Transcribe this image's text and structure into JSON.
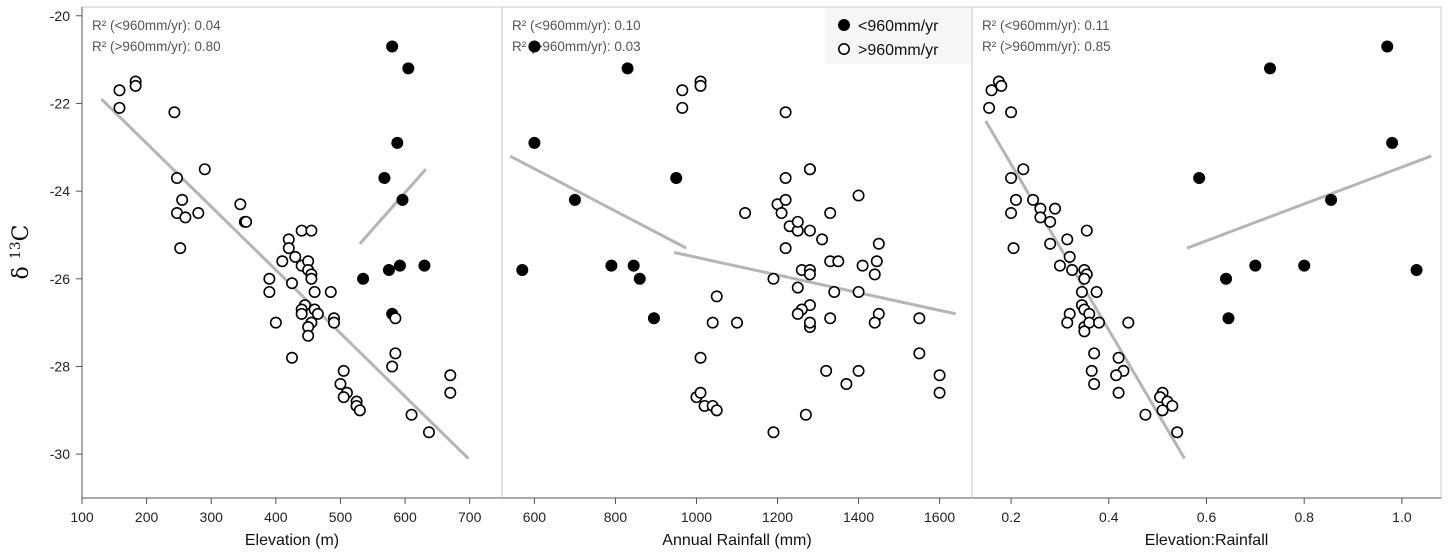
{
  "chart_data": {
    "type": "scatter",
    "ylabel": "δ 13C",
    "ylim": [
      -31,
      -19.8
    ],
    "y_ticks": [
      -20,
      -22,
      -24,
      -26,
      -28,
      -30
    ],
    "legend": {
      "placement": "top-right of middle panel",
      "entries": [
        {
          "label": "<960mm/yr",
          "marker": "filled"
        },
        {
          "label": ">960mm/yr",
          "marker": "open"
        }
      ]
    },
    "colors": {
      "fit_line": "#b5b5b5",
      "marker": "#000000"
    },
    "panels": [
      {
        "xlabel": "Elevation (m)",
        "xlim": [
          100,
          750
        ],
        "x_ticks": [
          "100",
          "200",
          "300",
          "400",
          "500",
          "600",
          "700"
        ],
        "x_tick_values": [
          100,
          200,
          300,
          400,
          500,
          600,
          700
        ],
        "r2_low": "R² (<960mm/yr): 0.04",
        "r2_high": "R² (>960mm/yr): 0.80",
        "series": [
          {
            "name": "<960mm/yr",
            "points": [
              [
                580,
                -20.7
              ],
              [
                605,
                -21.2
              ],
              [
                588,
                -22.9
              ],
              [
                568,
                -23.7
              ],
              [
                596,
                -24.2
              ],
              [
                535,
                -26.0
              ],
              [
                575,
                -25.8
              ],
              [
                592,
                -25.7
              ],
              [
                630,
                -25.7
              ],
              [
                580,
                -26.8
              ]
            ]
          },
          {
            "name": ">960mm/yr",
            "points": [
              [
                158,
                -21.7
              ],
              [
                183,
                -21.5
              ],
              [
                183,
                -21.6
              ],
              [
                158,
                -22.1
              ],
              [
                243,
                -22.2
              ],
              [
                247,
                -23.7
              ],
              [
                290,
                -23.5
              ],
              [
                247,
                -24.5
              ],
              [
                255,
                -24.2
              ],
              [
                260,
                -24.6
              ],
              [
                280,
                -24.5
              ],
              [
                252,
                -25.3
              ],
              [
                345,
                -24.3
              ],
              [
                352,
                -24.7
              ],
              [
                354,
                -24.7
              ],
              [
                440,
                -24.9
              ],
              [
                455,
                -24.9
              ],
              [
                420,
                -25.1
              ],
              [
                420,
                -25.3
              ],
              [
                430,
                -25.5
              ],
              [
                410,
                -25.6
              ],
              [
                440,
                -25.7
              ],
              [
                450,
                -25.6
              ],
              [
                450,
                -25.8
              ],
              [
                455,
                -25.9
              ],
              [
                455,
                -26.0
              ],
              [
                390,
                -26.0
              ],
              [
                425,
                -26.1
              ],
              [
                390,
                -26.3
              ],
              [
                460,
                -26.3
              ],
              [
                485,
                -26.3
              ],
              [
                445,
                -26.6
              ],
              [
                440,
                -26.7
              ],
              [
                440,
                -26.8
              ],
              [
                460,
                -26.7
              ],
              [
                465,
                -26.8
              ],
              [
                455,
                -27.0
              ],
              [
                450,
                -27.1
              ],
              [
                450,
                -27.3
              ],
              [
                400,
                -27.0
              ],
              [
                490,
                -26.9
              ],
              [
                490,
                -27.0
              ],
              [
                425,
                -27.8
              ],
              [
                505,
                -28.1
              ],
              [
                500,
                -28.4
              ],
              [
                510,
                -28.6
              ],
              [
                505,
                -28.7
              ],
              [
                525,
                -28.9
              ],
              [
                525,
                -28.8
              ],
              [
                525,
                -28.9
              ],
              [
                530,
                -29.0
              ],
              [
                585,
                -26.9
              ],
              [
                585,
                -27.7
              ],
              [
                580,
                -28.0
              ],
              [
                670,
                -28.2
              ],
              [
                670,
                -28.6
              ],
              [
                610,
                -29.1
              ],
              [
                637,
                -29.5
              ]
            ]
          }
        ],
        "fit_lines": [
          {
            "series": "<960mm/yr",
            "x": [
              530,
              632
            ],
            "y": [
              -25.2,
              -23.5
            ]
          },
          {
            "series": ">960mm/yr",
            "x": [
              130,
              698
            ],
            "y": [
              -21.9,
              -30.1
            ]
          }
        ]
      },
      {
        "xlabel": "Annual Rainfall (mm)",
        "xlim": [
          520,
          1680
        ],
        "x_ticks": [
          "600",
          "800",
          "1000",
          "1200",
          "1400",
          "1600"
        ],
        "x_tick_values": [
          600,
          800,
          1000,
          1200,
          1400,
          1600
        ],
        "r2_low": "R² (<960mm/yr): 0.10",
        "r2_high": "R² (>960mm/yr): 0.03",
        "series": [
          {
            "name": "<960mm/yr",
            "points": [
              [
                600,
                -20.7
              ],
              [
                830,
                -21.2
              ],
              [
                600,
                -22.9
              ],
              [
                950,
                -23.7
              ],
              [
                700,
                -24.2
              ],
              [
                570,
                -25.8
              ],
              [
                790,
                -25.7
              ],
              [
                845,
                -25.7
              ],
              [
                860,
                -26.0
              ],
              [
                895,
                -26.9
              ]
            ]
          },
          {
            "name": ">960mm/yr",
            "points": [
              [
                1010,
                -21.5
              ],
              [
                1010,
                -21.6
              ],
              [
                965,
                -21.7
              ],
              [
                965,
                -22.1
              ],
              [
                1220,
                -22.2
              ],
              [
                1220,
                -23.7
              ],
              [
                1280,
                -23.5
              ],
              [
                1280,
                -23.5
              ],
              [
                1120,
                -24.5
              ],
              [
                1200,
                -24.3
              ],
              [
                1210,
                -24.5
              ],
              [
                1220,
                -24.2
              ],
              [
                1230,
                -24.8
              ],
              [
                1250,
                -24.9
              ],
              [
                1250,
                -24.7
              ],
              [
                1280,
                -24.9
              ],
              [
                1310,
                -25.1
              ],
              [
                1220,
                -25.3
              ],
              [
                1330,
                -24.5
              ],
              [
                1400,
                -24.1
              ],
              [
                1450,
                -25.2
              ],
              [
                1330,
                -25.6
              ],
              [
                1350,
                -25.6
              ],
              [
                1260,
                -25.8
              ],
              [
                1280,
                -25.8
              ],
              [
                1280,
                -25.9
              ],
              [
                1410,
                -25.7
              ],
              [
                1445,
                -25.6
              ],
              [
                1440,
                -25.9
              ],
              [
                1190,
                -26.0
              ],
              [
                1250,
                -26.2
              ],
              [
                1340,
                -26.3
              ],
              [
                1400,
                -26.3
              ],
              [
                1050,
                -26.4
              ],
              [
                1280,
                -26.6
              ],
              [
                1260,
                -26.7
              ],
              [
                1250,
                -26.8
              ],
              [
                1450,
                -26.8
              ],
              [
                1040,
                -27.0
              ],
              [
                1100,
                -27.0
              ],
              [
                1280,
                -27.1
              ],
              [
                1280,
                -27.0
              ],
              [
                1330,
                -26.9
              ],
              [
                1440,
                -27.0
              ],
              [
                1550,
                -26.9
              ],
              [
                1010,
                -27.8
              ],
              [
                1550,
                -27.7
              ],
              [
                1400,
                -28.1
              ],
              [
                1320,
                -28.1
              ],
              [
                1600,
                -28.2
              ],
              [
                1370,
                -28.4
              ],
              [
                1000,
                -28.7
              ],
              [
                1010,
                -28.6
              ],
              [
                1020,
                -28.9
              ],
              [
                1040,
                -28.9
              ],
              [
                1050,
                -29.0
              ],
              [
                1600,
                -28.6
              ],
              [
                1270,
                -29.1
              ],
              [
                1190,
                -29.5
              ]
            ]
          }
        ],
        "fit_lines": [
          {
            "series": "<960mm/yr",
            "x": [
              540,
              975
            ],
            "y": [
              -23.2,
              -25.3
            ]
          },
          {
            "series": ">960mm/yr",
            "x": [
              945,
              1640
            ],
            "y": [
              -25.4,
              -26.8
            ]
          }
        ]
      },
      {
        "xlabel": "Elevation:Rainfall",
        "xlim": [
          0.12,
          1.08
        ],
        "x_ticks": [
          "0.2",
          "0.4",
          "0.6",
          "0.8",
          "1.0"
        ],
        "x_tick_values": [
          0.2,
          0.4,
          0.6,
          0.8,
          1.0
        ],
        "r2_low": "R² (<960mm/yr): 0.11",
        "r2_high": "R² (>960mm/yr): 0.85",
        "series": [
          {
            "name": "<960mm/yr",
            "points": [
              [
                0.97,
                -20.7
              ],
              [
                0.73,
                -21.2
              ],
              [
                0.98,
                -22.9
              ],
              [
                0.585,
                -23.7
              ],
              [
                0.855,
                -24.2
              ],
              [
                0.7,
                -25.7
              ],
              [
                0.8,
                -25.7
              ],
              [
                1.03,
                -25.8
              ],
              [
                0.64,
                -26.0
              ],
              [
                0.645,
                -26.9
              ]
            ]
          },
          {
            "name": ">960mm/yr",
            "points": [
              [
                0.175,
                -21.5
              ],
              [
                0.18,
                -21.6
              ],
              [
                0.16,
                -21.7
              ],
              [
                0.155,
                -22.1
              ],
              [
                0.2,
                -22.2
              ],
              [
                0.2,
                -23.7
              ],
              [
                0.225,
                -23.5
              ],
              [
                0.245,
                -24.2
              ],
              [
                0.2,
                -24.5
              ],
              [
                0.21,
                -24.2
              ],
              [
                0.26,
                -24.4
              ],
              [
                0.26,
                -24.6
              ],
              [
                0.28,
                -24.7
              ],
              [
                0.29,
                -24.4
              ],
              [
                0.205,
                -25.3
              ],
              [
                0.28,
                -25.2
              ],
              [
                0.315,
                -25.1
              ],
              [
                0.355,
                -24.9
              ],
              [
                0.32,
                -25.5
              ],
              [
                0.3,
                -25.7
              ],
              [
                0.325,
                -25.8
              ],
              [
                0.35,
                -25.8
              ],
              [
                0.355,
                -25.9
              ],
              [
                0.35,
                -26.0
              ],
              [
                0.345,
                -26.3
              ],
              [
                0.375,
                -26.3
              ],
              [
                0.345,
                -26.6
              ],
              [
                0.35,
                -26.7
              ],
              [
                0.36,
                -26.8
              ],
              [
                0.32,
                -26.8
              ],
              [
                0.315,
                -27.0
              ],
              [
                0.35,
                -27.1
              ],
              [
                0.36,
                -27.0
              ],
              [
                0.38,
                -27.0
              ],
              [
                0.44,
                -27.0
              ],
              [
                0.35,
                -27.2
              ],
              [
                0.37,
                -27.7
              ],
              [
                0.42,
                -27.8
              ],
              [
                0.365,
                -28.1
              ],
              [
                0.43,
                -28.1
              ],
              [
                0.415,
                -28.2
              ],
              [
                0.37,
                -28.4
              ],
              [
                0.42,
                -28.6
              ],
              [
                0.51,
                -28.6
              ],
              [
                0.505,
                -28.7
              ],
              [
                0.52,
                -28.8
              ],
              [
                0.53,
                -28.9
              ],
              [
                0.51,
                -29.0
              ],
              [
                0.475,
                -29.1
              ],
              [
                0.54,
                -29.5
              ]
            ]
          }
        ],
        "fit_lines": [
          {
            "series": "<960mm/yr",
            "x": [
              0.56,
              1.06
            ],
            "y": [
              -25.3,
              -23.2
            ]
          },
          {
            "series": ">960mm/yr",
            "x": [
              0.148,
              0.555
            ],
            "y": [
              -22.4,
              -30.1
            ]
          }
        ]
      }
    ]
  }
}
